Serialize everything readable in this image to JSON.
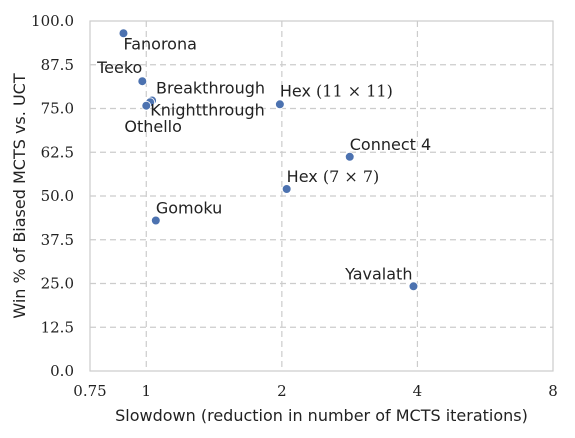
{
  "chart_data": {
    "type": "scatter",
    "xlabel": "Slowdown (reduction in number of MCTS iterations)",
    "ylabel": "Win % of Biased MCTS vs. UCT",
    "x_scale": "log2",
    "xlim": [
      0.75,
      8
    ],
    "ylim": [
      0,
      100
    ],
    "x_ticks": [
      0.75,
      1,
      2,
      4,
      8
    ],
    "x_tick_labels": [
      "0.75",
      "1",
      "2",
      "4",
      "8"
    ],
    "y_ticks": [
      0,
      12.5,
      25,
      37.5,
      50,
      62.5,
      75,
      87.5,
      100
    ],
    "y_tick_labels": [
      "0.0",
      "12.5",
      "25.0",
      "37.5",
      "50.0",
      "62.5",
      "75.0",
      "87.5",
      "100.0"
    ],
    "grid": true,
    "marker_color": "#4c72b0",
    "points": [
      {
        "label": "Fanorona",
        "x": 0.89,
        "y": 96.5
      },
      {
        "label": "Teeko",
        "x": 0.98,
        "y": 82.8
      },
      {
        "label": "Breakthrough",
        "x": 1.03,
        "y": 77.3
      },
      {
        "label": "Othello",
        "x": 1.02,
        "y": 76.8
      },
      {
        "label": "Knightthrough",
        "x": 1.0,
        "y": 75.8
      },
      {
        "label": "Hex (11 × 11)",
        "x": 1.98,
        "y": 76.2
      },
      {
        "label": "Connect 4",
        "x": 2.83,
        "y": 61.2
      },
      {
        "label": "Hex (7 × 7)",
        "x": 2.05,
        "y": 52.0
      },
      {
        "label": "Gomoku",
        "x": 1.05,
        "y": 43.0
      },
      {
        "label": "Yavalath",
        "x": 3.92,
        "y": 24.2
      }
    ]
  }
}
